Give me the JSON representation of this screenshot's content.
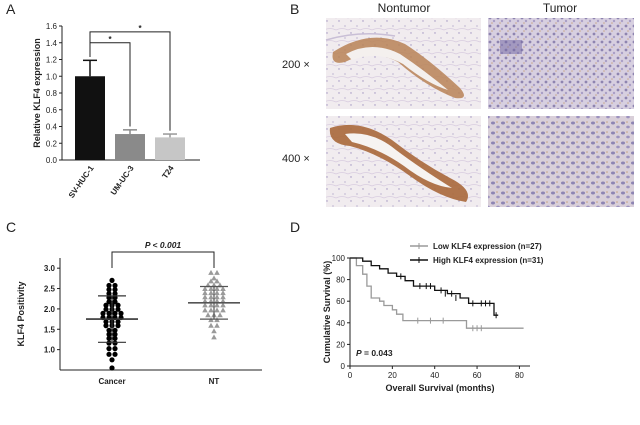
{
  "panels": {
    "a": "A",
    "b": "B",
    "c": "C",
    "d": "D"
  },
  "colors": {
    "bar_svhuc": "#111111",
    "bar_umuc": "#8a8a8a",
    "bar_t24": "#c6c6c6",
    "scatter_cancer": "#000000",
    "scatter_nt": "#9a9a9a",
    "km_low": "#9a9a9a",
    "km_high": "#111111"
  },
  "chart_data": [
    {
      "id": "panel-a",
      "type": "bar",
      "categories": [
        "SV-HUC-1",
        "UM-UC-3",
        "T24"
      ],
      "values": [
        1.0,
        0.31,
        0.27
      ],
      "errors": [
        0.19,
        0.05,
        0.04
      ],
      "ylabel": "Relative KLF4 expression",
      "ylim": [
        0,
        1.6
      ],
      "yticks": [
        "0.0",
        "0.2",
        "0.4",
        "0.6",
        "0.8",
        "1.0",
        "1.2",
        "1.4",
        "1.6"
      ],
      "ytick_values": [
        0,
        0.2,
        0.4,
        0.6,
        0.8,
        1.0,
        1.2,
        1.4,
        1.6
      ],
      "annotations": [
        {
          "from": "SV-HUC-1",
          "to": "UM-UC-3",
          "label": "*"
        },
        {
          "from": "SV-HUC-1",
          "to": "T24",
          "label": "*"
        }
      ]
    },
    {
      "id": "panel-c",
      "type": "scatter",
      "categories": [
        "Cancer",
        "NT"
      ],
      "ylabel": "KLF4 Positivity",
      "ylim": [
        0.5,
        3.25
      ],
      "yticks": [
        "1.0",
        "1.5",
        "2.0",
        "2.5",
        "3.0"
      ],
      "ytick_values": [
        1.0,
        1.5,
        2.0,
        2.5,
        3.0
      ],
      "means": [
        1.75,
        2.15
      ],
      "sd": [
        0.57,
        0.4
      ],
      "annotation": "P < 0.001",
      "series": [
        {
          "values": [
            0.55,
            0.75,
            0.85,
            0.92,
            1.0,
            1.05,
            1.12,
            1.2,
            1.25,
            1.3,
            1.35,
            1.4,
            1.45,
            1.5,
            1.55,
            1.6,
            1.62,
            1.65,
            1.68,
            1.72,
            1.75,
            1.78,
            1.8,
            1.82,
            1.85,
            1.88,
            1.9,
            1.93,
            1.95,
            2.0,
            2.02,
            2.05,
            2.1,
            2.12,
            2.15,
            2.2,
            2.25,
            2.3,
            2.35,
            2.4,
            2.45,
            2.5,
            2.55,
            2.6,
            2.7
          ]
        },
        {
          "values": [
            1.3,
            1.45,
            1.55,
            1.62,
            1.7,
            1.75,
            1.8,
            1.85,
            1.88,
            1.92,
            1.95,
            1.98,
            2.0,
            2.05,
            2.08,
            2.1,
            2.12,
            2.15,
            2.18,
            2.2,
            2.22,
            2.25,
            2.28,
            2.3,
            2.32,
            2.35,
            2.38,
            2.4,
            2.42,
            2.45,
            2.48,
            2.5,
            2.52,
            2.55,
            2.58,
            2.6,
            2.65,
            2.7,
            2.75,
            2.85,
            2.92
          ]
        }
      ]
    },
    {
      "id": "panel-d",
      "type": "line",
      "xlabel": "Overall Survival (months)",
      "ylabel": "Cumulative Survival (%)",
      "xlim": [
        0,
        85
      ],
      "ylim": [
        0,
        100
      ],
      "xticks": [
        "0",
        "20",
        "40",
        "60",
        "80"
      ],
      "xtick_values": [
        0,
        20,
        40,
        60,
        80
      ],
      "yticks": [
        "0",
        "20",
        "40",
        "60",
        "80",
        "100"
      ],
      "ytick_values": [
        0,
        20,
        40,
        60,
        80,
        100
      ],
      "annotation": "= 0.043",
      "annotation_italic": "P",
      "legend_placement": "top-right",
      "series": [
        {
          "name": "Low KLF4 expression (n=27)",
          "color_key": "km_low",
          "x": [
            0,
            3,
            3,
            6,
            6,
            8,
            8,
            10,
            10,
            14,
            14,
            16,
            16,
            20,
            20,
            22,
            22,
            25,
            25,
            55,
            55,
            82
          ],
          "y": [
            100,
            100,
            93,
            93,
            85,
            85,
            74,
            74,
            63,
            63,
            60,
            60,
            56,
            56,
            52,
            52,
            48,
            48,
            42,
            42,
            35,
            35
          ],
          "censor_x": [
            32,
            38,
            44,
            58,
            60,
            62
          ],
          "censor_y": [
            42,
            42,
            42,
            35,
            35,
            35
          ]
        },
        {
          "name": "High KLF4 expression (n=31)",
          "color_key": "km_high",
          "x": [
            0,
            6,
            6,
            10,
            10,
            14,
            14,
            18,
            18,
            22,
            22,
            26,
            26,
            30,
            30,
            40,
            40,
            46,
            46,
            52,
            52,
            56,
            56,
            68,
            68,
            70
          ],
          "y": [
            100,
            100,
            97,
            97,
            93,
            93,
            90,
            90,
            86,
            86,
            83,
            83,
            79,
            79,
            74,
            74,
            70,
            70,
            67,
            67,
            63,
            63,
            58,
            58,
            47,
            47
          ],
          "censor_x": [
            24,
            33,
            36,
            38,
            43,
            45,
            48,
            50,
            58,
            62,
            64,
            66,
            69
          ],
          "censor_y": [
            83,
            74,
            74,
            74,
            70,
            67,
            67,
            63,
            58,
            58,
            58,
            58,
            47
          ]
        }
      ]
    }
  ],
  "panel_b": {
    "col_nontumor": "Nontumor",
    "col_tumor": "Tumor",
    "row_200": "200 ×",
    "row_400": "400 ×"
  }
}
